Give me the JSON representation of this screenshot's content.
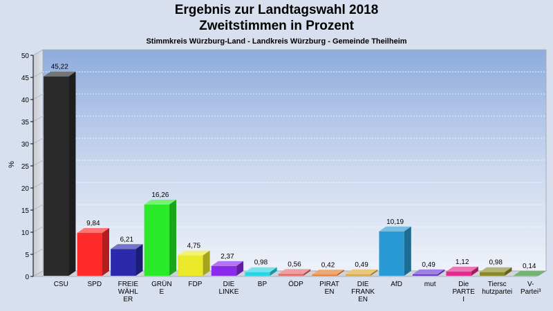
{
  "title_line1": "Ergebnis zur Landtagswahl 2018",
  "title_line2": "Zweitstimmen in Prozent",
  "subtitle": "Stimmkreis Würzburg-Land - Landkreis Würzburg - Gemeinde Theilheim",
  "chart_data": {
    "type": "bar",
    "ylabel": "%",
    "ylim": [
      0,
      50
    ],
    "yticks": [
      0,
      5,
      10,
      15,
      20,
      25,
      30,
      35,
      40,
      45,
      50
    ],
    "grid": true,
    "categories": [
      [
        "CSU"
      ],
      [
        "SPD"
      ],
      [
        "FREIE",
        "WÄHL",
        "ER"
      ],
      [
        "GRÜN",
        "E"
      ],
      [
        "FDP"
      ],
      [
        "DIE",
        "LINKE"
      ],
      [
        "BP"
      ],
      [
        "ÖDP"
      ],
      [
        "PIRAT",
        "EN"
      ],
      [
        "DIE",
        "FRANK",
        "EN"
      ],
      [
        "AfD"
      ],
      [
        "mut"
      ],
      [
        "Die",
        "PARTE",
        "I"
      ],
      [
        "Tiersc",
        "hutzpartei"
      ],
      [
        "V-",
        "Partei³"
      ]
    ],
    "values": [
      45.22,
      9.84,
      6.21,
      16.26,
      4.75,
      2.37,
      0.98,
      0.56,
      0.42,
      0.49,
      10.19,
      0.49,
      1.12,
      0.98,
      0.14
    ],
    "value_labels": [
      "45,22",
      "9,84",
      "6,21",
      "16,26",
      "4,75",
      "2,37",
      "0,98",
      "0,56",
      "0,42",
      "0,49",
      "10,19",
      "0,49",
      "1,12",
      "0,98",
      "0,14"
    ],
    "colors": [
      "#2a2a2a",
      "#ff2a2a",
      "#2a2aaa",
      "#2aea2a",
      "#eaea2a",
      "#8a2aea",
      "#2ad4e4",
      "#e46a6a",
      "#e47a2a",
      "#dcaa3a",
      "#2a9ad4",
      "#6a3ad4",
      "#e42a8a",
      "#8a8a2a",
      "#2a8a2a"
    ]
  }
}
